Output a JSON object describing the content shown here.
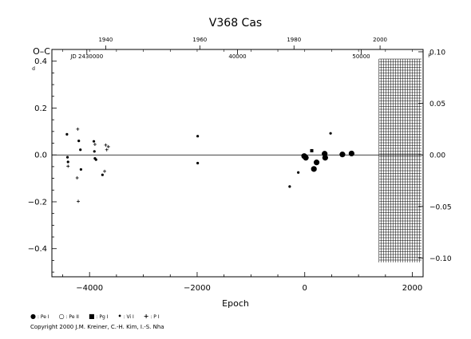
{
  "chart_data": {
    "type": "scatter",
    "title": "V368  Cas",
    "ylabel": "O–C",
    "ylabel_unit_left": "d",
    "ylabel_unit_right": "P",
    "xlabel": "Epoch",
    "xlim": [
      -4700,
      2200
    ],
    "ylim": [
      -0.52,
      0.45
    ],
    "right_ylim": [
      -0.1,
      0.1
    ],
    "x_ticks": [
      -4000,
      -2000,
      0,
      2000
    ],
    "x_tick_labels": [
      "−4000",
      "−2000",
      "0",
      "2000"
    ],
    "y_ticks": [
      -0.4,
      -0.2,
      0.0,
      0.2,
      0.4
    ],
    "y_tick_labels": [
      "−0.4",
      "−0.2",
      "0.0",
      "0.2",
      "0.4"
    ],
    "right_y_ticks": [
      -0.1,
      -0.05,
      0.0,
      0.05,
      0.1
    ],
    "right_y_tick_labels": [
      "−0.10",
      "−0.05",
      "0.00",
      "0.05",
      "0.10"
    ],
    "top_year_ticks": [
      {
        "label": "1940",
        "epoch": -3700
      },
      {
        "label": "1960",
        "epoch": -1950
      },
      {
        "label": "1980",
        "epoch": -200
      },
      {
        "label": "2000",
        "epoch": 1400
      }
    ],
    "jd_ticks": [
      {
        "label": "JD 2430000",
        "epoch": -4050
      },
      {
        "label": "40000",
        "epoch": -1250
      },
      {
        "label": "50000",
        "epoch": 1050
      }
    ],
    "hatched_region": [
      1380,
      2200
    ],
    "series": [
      {
        "name": "Pe I",
        "marker": "filled-circle",
        "points": [
          [
            -10,
            -0.005
          ],
          [
            20,
            -0.012
          ],
          [
            170,
            -0.06
          ],
          [
            220,
            -0.032
          ],
          [
            370,
            0.005
          ],
          [
            380,
            -0.012
          ],
          [
            700,
            0.002
          ],
          [
            870,
            0.006
          ]
        ]
      },
      {
        "name": "Pg I",
        "marker": "filled-square",
        "points": [
          [
            130,
            0.018
          ]
        ]
      },
      {
        "name": "Vi I",
        "marker": "dot",
        "points": [
          [
            -4420,
            0.088
          ],
          [
            -4410,
            -0.01
          ],
          [
            -4400,
            -0.03
          ],
          [
            -4200,
            0.06
          ],
          [
            -4170,
            0.022
          ],
          [
            -4160,
            -0.062
          ],
          [
            -3920,
            0.058
          ],
          [
            -3910,
            0.015
          ],
          [
            -3900,
            -0.015
          ],
          [
            -3880,
            -0.02
          ],
          [
            -3760,
            -0.085
          ],
          [
            -1990,
            0.08
          ],
          [
            -1990,
            -0.035
          ],
          [
            -280,
            -0.135
          ],
          [
            -120,
            -0.075
          ],
          [
            480,
            0.092
          ]
        ]
      },
      {
        "name": "P I",
        "marker": "plus",
        "points": [
          [
            -4400,
            -0.048
          ],
          [
            -4220,
            0.11
          ],
          [
            -4230,
            -0.098
          ],
          [
            -4210,
            -0.198
          ],
          [
            -3900,
            0.045
          ],
          [
            -3700,
            0.042
          ],
          [
            -3680,
            0.022
          ],
          [
            -3720,
            -0.07
          ],
          [
            -3650,
            0.035
          ]
        ]
      }
    ],
    "legend": [
      {
        "symbol": "●",
        "label": ": Pe I"
      },
      {
        "symbol": "○",
        "label": ": Pe II"
      },
      {
        "symbol": "■",
        "label": ": Pg I"
      },
      {
        "symbol": "•",
        "label": ": Vi I"
      },
      {
        "symbol": "+",
        "label": ": P I"
      }
    ]
  },
  "copyright": "Copyright 2000 J.M. Kreiner, C.-H. Kim, I.-S. Nha"
}
